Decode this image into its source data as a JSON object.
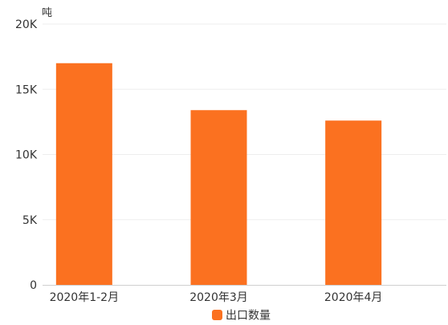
{
  "chart_data": {
    "type": "bar",
    "categories": [
      "2020年1-2月",
      "2020年3月",
      "2020年4月"
    ],
    "series": [
      {
        "name": "出口数量",
        "values": [
          17000,
          13400,
          12600
        ],
        "color": "#fb7120"
      }
    ],
    "yunit": "吨",
    "ylim": [
      0,
      20000
    ],
    "yticks": [
      0,
      5000,
      10000,
      15000,
      20000
    ],
    "ytick_labels": [
      "0",
      "5K",
      "10K",
      "15K",
      "20K"
    ],
    "grid": true,
    "legend": "bottom-center"
  }
}
